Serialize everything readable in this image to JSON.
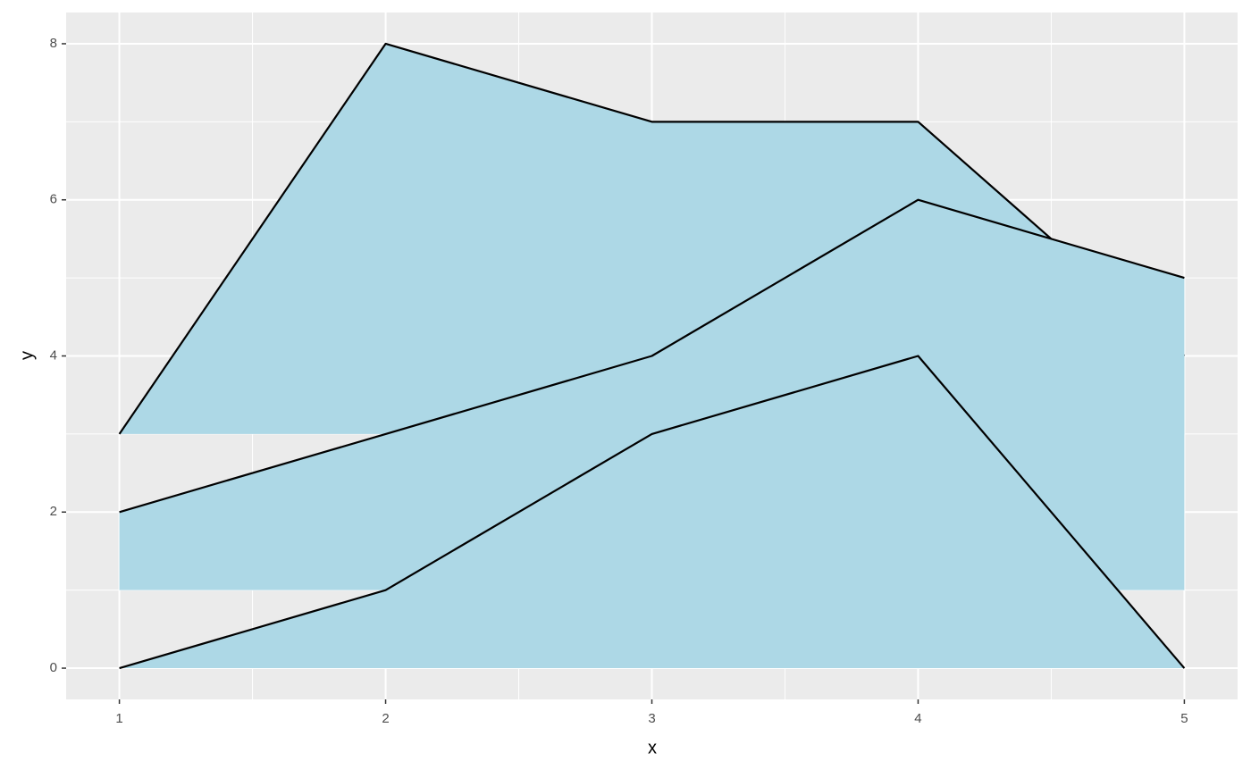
{
  "chart_data": {
    "type": "area",
    "x_label": "x",
    "y_label": "y",
    "x": [
      1,
      2,
      3,
      4,
      5
    ],
    "series": [
      {
        "color": "#add8e6",
        "line_color": "#000000",
        "ymin": 3,
        "values": [
          3,
          8,
          7,
          7,
          4
        ]
      },
      {
        "color": "#add8e6",
        "line_color": "#000000",
        "ymin": 1,
        "values": [
          2,
          3,
          4,
          6,
          5
        ]
      },
      {
        "color": "#add8e6",
        "line_color": "#000000",
        "ymin": 0,
        "values": [
          0,
          1,
          3,
          4,
          0
        ]
      }
    ],
    "xlim": [
      0.8,
      5.2
    ],
    "xticks": [
      1,
      2,
      3,
      4,
      5
    ],
    "ylim": [
      -0.4,
      8.4
    ],
    "yticks": [
      0,
      2,
      4,
      6,
      8
    ],
    "grid": true
  }
}
